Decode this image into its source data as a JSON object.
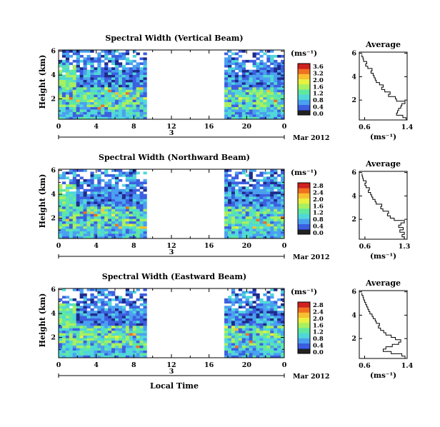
{
  "chart_data": [
    {
      "type": "heatmap",
      "title": "Spectral Width (Vertical Beam)",
      "ylabel": "Height (km)",
      "xlabel": "",
      "x_ticks": [
        "0",
        "4",
        "8",
        "12",
        "16",
        "20",
        "0"
      ],
      "y_ticks": [
        "2",
        "4",
        "6"
      ],
      "date_day": "3",
      "date_label": "Mar 2012",
      "ylim": [
        0.3,
        6.1
      ],
      "xlim_hours": [
        0,
        24
      ],
      "data_gap_hours": [
        9.4,
        17.6
      ],
      "colorbar_unit": "(ms⁻¹)",
      "colorbar_ticks": [
        "3.6",
        "3.2",
        "2.0",
        "1.6",
        "1.2",
        "0.8",
        "0.4",
        "0.0"
      ],
      "colormap": [
        "#1e2a8c",
        "#3c5fe0",
        "#4aa0f0",
        "#50d8d8",
        "#60e8a0",
        "#a8f060",
        "#e8f040",
        "#f8c030",
        "#f07020",
        "#d02020"
      ],
      "average_profile": {
        "title": "Average",
        "xlabel": "(ms⁻¹)",
        "x_ticks": [
          "0.6",
          "1.4"
        ],
        "xlim": [
          0.5,
          1.4
        ],
        "y_ticks": [
          "2",
          "4",
          "6"
        ],
        "ylim": [
          0.3,
          6.1
        ],
        "height_km": [
          0.4,
          0.6,
          0.8,
          1.0,
          1.2,
          1.4,
          1.6,
          1.8,
          2.0,
          2.2,
          2.4,
          2.6,
          2.8,
          3.0,
          3.2,
          3.4,
          3.6,
          3.8,
          4.0,
          4.2,
          4.4,
          4.6,
          4.8,
          5.0,
          5.2,
          5.4,
          5.6,
          5.8
        ],
        "width_ms": [
          1.38,
          1.32,
          1.2,
          1.22,
          1.24,
          1.28,
          1.3,
          1.36,
          1.2,
          1.18,
          1.05,
          1.08,
          0.98,
          0.92,
          0.95,
          0.88,
          0.82,
          0.8,
          0.78,
          0.76,
          0.72,
          0.74,
          0.66,
          0.62,
          0.64,
          0.58,
          0.57,
          0.55
        ]
      }
    },
    {
      "type": "heatmap",
      "title": "Spectral Width (Northward Beam)",
      "ylabel": "Height (km)",
      "xlabel": "",
      "x_ticks": [
        "0",
        "4",
        "8",
        "12",
        "16",
        "20",
        "0"
      ],
      "y_ticks": [
        "2",
        "4",
        "6"
      ],
      "date_day": "3",
      "date_label": "Mar 2012",
      "ylim": [
        0.3,
        6.1
      ],
      "xlim_hours": [
        0,
        24
      ],
      "data_gap_hours": [
        9.4,
        17.6
      ],
      "colorbar_unit": "(ms⁻¹)",
      "colorbar_ticks": [
        "2.8",
        "2.4",
        "2.0",
        "1.6",
        "1.2",
        "0.8",
        "0.4",
        "0.0"
      ],
      "colormap": [
        "#1e2a8c",
        "#3c5fe0",
        "#4aa0f0",
        "#50d8d8",
        "#60e8a0",
        "#a8f060",
        "#e8f040",
        "#f8c030",
        "#f07020",
        "#d02020"
      ],
      "average_profile": {
        "title": "Average",
        "xlabel": "(ms⁻¹)",
        "x_ticks": [
          "0.6",
          "1.3"
        ],
        "xlim": [
          0.5,
          1.35
        ],
        "y_ticks": [
          "2",
          "4",
          "6"
        ],
        "ylim": [
          0.3,
          6.1
        ],
        "height_km": [
          0.4,
          0.6,
          0.8,
          1.0,
          1.2,
          1.4,
          1.6,
          1.8,
          2.0,
          2.2,
          2.4,
          2.6,
          2.8,
          3.0,
          3.2,
          3.4,
          3.6,
          3.8,
          4.0,
          4.2,
          4.4,
          4.6,
          4.8,
          5.0,
          5.2,
          5.4,
          5.6,
          5.8
        ],
        "width_ms": [
          1.3,
          1.26,
          1.3,
          1.22,
          1.28,
          1.2,
          1.24,
          1.3,
          1.12,
          1.05,
          1.0,
          1.02,
          0.92,
          0.88,
          0.9,
          0.8,
          0.78,
          0.74,
          0.72,
          0.7,
          0.66,
          0.68,
          0.62,
          0.6,
          0.62,
          0.57,
          0.56,
          0.55
        ]
      }
    },
    {
      "type": "heatmap",
      "title": "Spectral Width (Eastward Beam)",
      "ylabel": "Height (km)",
      "xlabel": "Local Time",
      "x_ticks": [
        "0",
        "4",
        "8",
        "12",
        "16",
        "20",
        "0"
      ],
      "y_ticks": [
        "2",
        "4",
        "6"
      ],
      "date_day": "3",
      "date_label": "Mar 2012",
      "ylim": [
        0.3,
        6.1
      ],
      "xlim_hours": [
        0,
        24
      ],
      "data_gap_hours": [
        9.4,
        17.6
      ],
      "colorbar_unit": "(ms⁻¹)",
      "colorbar_ticks": [
        "2.8",
        "2.4",
        "2.0",
        "1.6",
        "1.2",
        "0.8",
        "0.4",
        "0.0"
      ],
      "colormap": [
        "#1e2a8c",
        "#3c5fe0",
        "#4aa0f0",
        "#50d8d8",
        "#60e8a0",
        "#a8f060",
        "#e8f040",
        "#f8c030",
        "#f07020",
        "#d02020"
      ],
      "average_profile": {
        "title": "Average",
        "xlabel": "(ms⁻¹)",
        "x_ticks": [
          "0.6",
          "1.4"
        ],
        "xlim": [
          0.5,
          1.4
        ],
        "y_ticks": [
          "2",
          "4",
          "6"
        ],
        "ylim": [
          0.3,
          6.1
        ],
        "height_km": [
          0.4,
          0.6,
          0.8,
          1.0,
          1.2,
          1.4,
          1.6,
          1.8,
          2.0,
          2.2,
          2.4,
          2.6,
          2.8,
          3.0,
          3.2,
          3.4,
          3.6,
          3.8,
          4.0,
          4.2,
          4.4,
          4.6,
          4.8,
          5.0,
          5.2,
          5.4,
          5.6,
          5.8
        ],
        "width_ms": [
          1.36,
          1.3,
          1.1,
          0.95,
          1.0,
          1.12,
          1.24,
          1.28,
          1.18,
          1.1,
          1.0,
          0.96,
          0.9,
          0.86,
          0.88,
          0.82,
          0.8,
          0.76,
          0.74,
          0.7,
          0.68,
          0.66,
          0.64,
          0.62,
          0.6,
          0.58,
          0.57,
          0.55
        ]
      }
    }
  ]
}
